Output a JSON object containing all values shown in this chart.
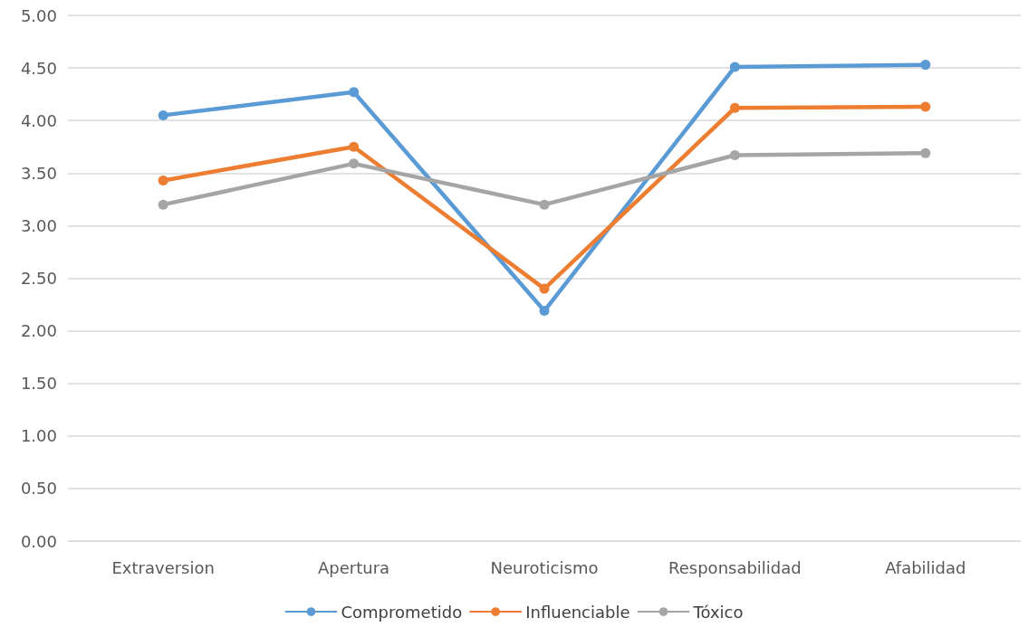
{
  "chart_data": {
    "type": "line",
    "categories": [
      "Extraversion",
      "Apertura",
      "Neuroticismo",
      "Responsabilidad",
      "Afabilidad"
    ],
    "series": [
      {
        "name": "Comprometido",
        "color": "#5b9bd5",
        "values": [
          4.05,
          4.27,
          2.19,
          4.51,
          4.53
        ]
      },
      {
        "name": "Influenciable",
        "color": "#ed7d31",
        "values": [
          3.43,
          3.75,
          2.4,
          4.12,
          4.13
        ]
      },
      {
        "name": "Tóxico",
        "color": "#a5a5a5",
        "values": [
          3.2,
          3.59,
          3.2,
          3.67,
          3.69
        ]
      }
    ],
    "ylim": [
      0,
      5
    ],
    "yticks": [
      {
        "value": 0,
        "label": "0.00"
      },
      {
        "value": 0.5,
        "label": "0.50"
      },
      {
        "value": 1,
        "label": "1.00"
      },
      {
        "value": 1.5,
        "label": "1.50"
      },
      {
        "value": 2,
        "label": "2.00"
      },
      {
        "value": 2.5,
        "label": "2.50"
      },
      {
        "value": 3,
        "label": "3.00"
      },
      {
        "value": 3.5,
        "label": "3.50"
      },
      {
        "value": 4,
        "label": "4.00"
      },
      {
        "value": 4.5,
        "label": "4.50"
      },
      {
        "value": 5,
        "label": "5.00"
      }
    ],
    "grid": "y",
    "legend": "bottom",
    "marker": "circle",
    "line_style": "solid"
  }
}
